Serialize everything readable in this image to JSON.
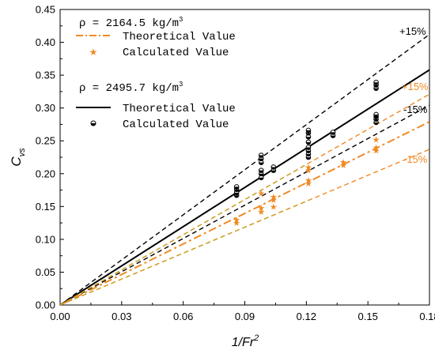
{
  "chart_data": {
    "type": "scatter",
    "xlabel_base": "1/Fr",
    "xlabel_sup": "2",
    "ylabel_base": "C",
    "ylabel_sub": "vs",
    "xlim": [
      0,
      0.18
    ],
    "ylim": [
      0,
      0.45
    ],
    "xticks": [
      "0.00",
      "0.03",
      "0.06",
      "0.09",
      "0.12",
      "0.15",
      "0.18"
    ],
    "yticks": [
      "0.00",
      "0.05",
      "0.10",
      "0.15",
      "0.20",
      "0.25",
      "0.30",
      "0.35",
      "0.40",
      "0.45"
    ],
    "colors": {
      "orange": "#f08a24",
      "orange_band": "#f08a24",
      "yellow_band": "#c9a227",
      "black": "#000000"
    },
    "legend": {
      "group1_title_prefix": "ρ = 2164.5 kg/m",
      "group1_title_sup": "3",
      "group1_line": "Theoretical Value",
      "group1_points": "Calculated Value",
      "group2_title_prefix": "ρ = 2495.7 kg/m",
      "group2_title_sup": "3",
      "group2_line": "Theoretical Value",
      "group2_points": "Calculated Value"
    },
    "band_labels": {
      "black_upper": "+15%",
      "black_lower": "-15%",
      "orange_upper": "+15%",
      "orange_lower": "-15%"
    },
    "series": [
      {
        "role": "rho_2495_theoretical",
        "style": "solid",
        "color": "#000000",
        "x": [
          0,
          0.18
        ],
        "y": [
          0,
          0.358
        ]
      },
      {
        "role": "rho_2495_upper_band",
        "style": "dashed",
        "color": "#000000",
        "x": [
          0,
          0.18
        ],
        "y": [
          0,
          0.412
        ]
      },
      {
        "role": "rho_2495_lower_band",
        "style": "dashed",
        "color": "#000000",
        "x": [
          0,
          0.18
        ],
        "y": [
          0,
          0.304
        ]
      },
      {
        "role": "rho_2164_theoretical",
        "style": "dashdot",
        "color": "#f08a24",
        "x": [
          0,
          0.18
        ],
        "y": [
          0,
          0.279
        ]
      },
      {
        "role": "rho_2164_upper_band",
        "style": "dashed",
        "color": "#f08a24",
        "x": [
          0,
          0.18
        ],
        "y": [
          0,
          0.321
        ]
      },
      {
        "role": "rho_2164_lower_band",
        "style": "dashed",
        "color": "#f08a24",
        "x": [
          0,
          0.18
        ],
        "y": [
          0,
          0.237
        ]
      }
    ],
    "points": [
      {
        "role": "rho_2495_calculated",
        "marker": "circle-halffill",
        "color": "#000000",
        "x": [
          0.086,
          0.086,
          0.086,
          0.086,
          0.098,
          0.098,
          0.098,
          0.098,
          0.098,
          0.098,
          0.104,
          0.104,
          0.121,
          0.121,
          0.121,
          0.121,
          0.121,
          0.121,
          0.121,
          0.121,
          0.133,
          0.133,
          0.154,
          0.154,
          0.154,
          0.154,
          0.154,
          0.154,
          0.154
        ],
        "y": [
          0.167,
          0.171,
          0.176,
          0.18,
          0.194,
          0.2,
          0.205,
          0.217,
          0.223,
          0.228,
          0.205,
          0.21,
          0.225,
          0.23,
          0.235,
          0.24,
          0.248,
          0.256,
          0.262,
          0.266,
          0.258,
          0.263,
          0.278,
          0.283,
          0.287,
          0.29,
          0.33,
          0.335,
          0.339
        ]
      },
      {
        "role": "rho_2164_calculated",
        "marker": "star",
        "color": "#f08a24",
        "x": [
          0.086,
          0.086,
          0.098,
          0.098,
          0.098,
          0.104,
          0.104,
          0.104,
          0.121,
          0.121,
          0.121,
          0.121,
          0.138,
          0.138,
          0.154,
          0.154,
          0.154
        ],
        "y": [
          0.125,
          0.13,
          0.142,
          0.148,
          0.17,
          0.15,
          0.16,
          0.165,
          0.185,
          0.19,
          0.205,
          0.21,
          0.213,
          0.218,
          0.235,
          0.24,
          0.252
        ]
      }
    ]
  }
}
